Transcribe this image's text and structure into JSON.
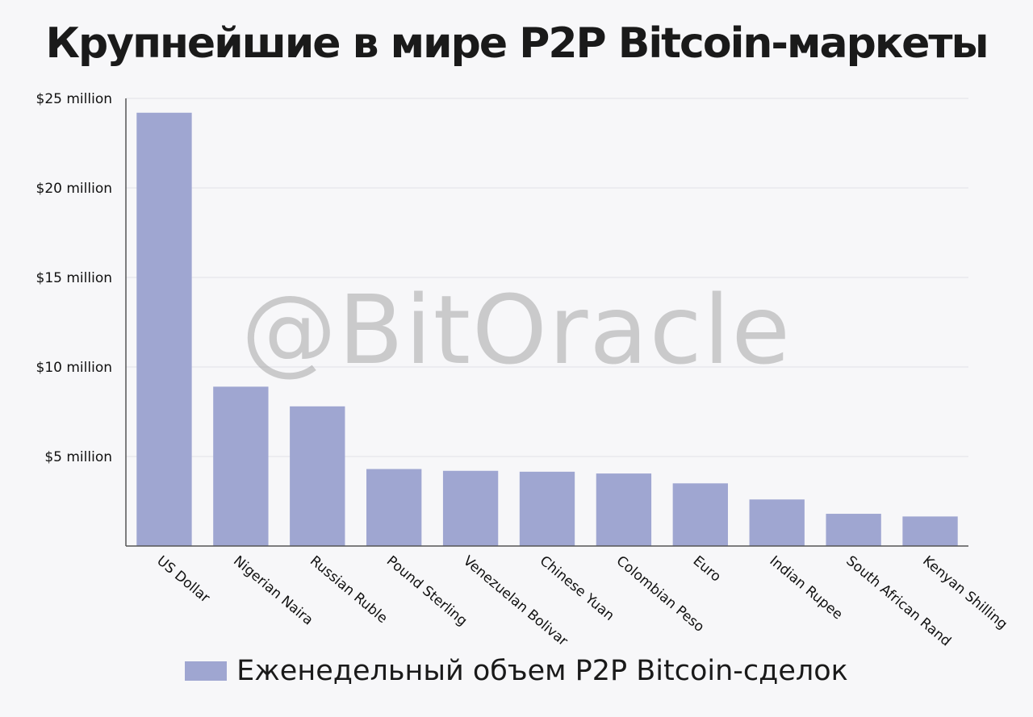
{
  "title": "Крупнейшие в мире P2P Bitcoin-маркеты",
  "watermark": "@BitOracle",
  "colors": {
    "bar": "#9fa6d1",
    "grid": "#e2e2e8",
    "axis": "#555555",
    "background": "#f7f7f9"
  },
  "chart_data": {
    "type": "bar",
    "title": "Крупнейшие в мире P2P Bitcoin-маркеты",
    "categories": [
      "US Dollar",
      "Nigerian Naira",
      "Russian Ruble",
      "Pound Sterling",
      "Venezuelan Bolivar",
      "Chinese Yuan",
      "Colombian Peso",
      "Euro",
      "Indian Rupee",
      "South African Rand",
      "Kenyan Shilling"
    ],
    "series": [
      {
        "name": "Еженедельный объем P2P Bitcoin-сделок",
        "values": [
          24.2,
          8.9,
          7.8,
          4.3,
          4.2,
          4.15,
          4.05,
          3.5,
          2.6,
          1.8,
          1.65
        ]
      }
    ],
    "ylim": [
      0,
      25
    ],
    "yticks": [
      5,
      10,
      15,
      20,
      25
    ],
    "ytick_labels": [
      "$5 million",
      "$10 million",
      "$15 million",
      "$20 million",
      "$25 million"
    ],
    "grid": true,
    "legend_position": "bottom-center"
  }
}
